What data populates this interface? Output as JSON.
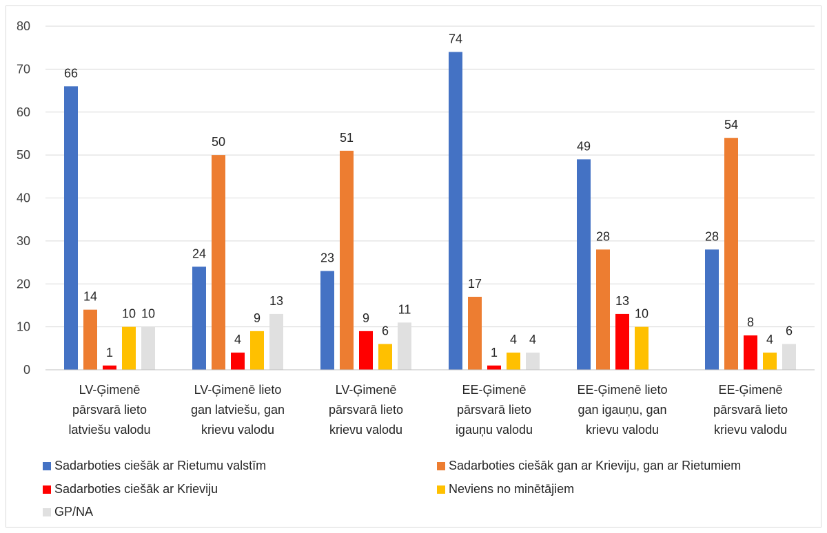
{
  "chart_data": {
    "type": "bar",
    "categories": [
      [
        "LV-Ģimenē",
        "pārsvarā lieto",
        "latviešu valodu"
      ],
      [
        "LV-Ģimenē lieto",
        "gan latviešu, gan",
        "krievu valodu"
      ],
      [
        "LV-Ģimenē",
        "pārsvarā lieto",
        "krievu valodu"
      ],
      [
        "EE-Ģimenē",
        "pārsvarā lieto",
        "igauņu valodu"
      ],
      [
        "EE-Ģimenē lieto",
        "gan igauņu, gan",
        "krievu valodu"
      ],
      [
        "EE-Ģimenē",
        "pārsvarā lieto",
        "krievu valodu"
      ]
    ],
    "series": [
      {
        "name": "Sadarboties ciešāk ar Rietumu valstīm",
        "color": "#4472C4",
        "values": [
          66,
          24,
          23,
          74,
          49,
          28
        ]
      },
      {
        "name": "Sadarboties ciešāk gan ar Krieviju, gan ar Rietumiem",
        "color": "#ED7D31",
        "values": [
          14,
          50,
          51,
          17,
          28,
          54
        ]
      },
      {
        "name": "Sadarboties ciešāk ar Krieviju",
        "color": "#FF0000",
        "values": [
          1,
          4,
          9,
          1,
          13,
          8
        ]
      },
      {
        "name": "Neviens no minētājiem",
        "color": "#FFC000",
        "values": [
          10,
          9,
          6,
          4,
          10,
          4
        ]
      },
      {
        "name": "GP/NA",
        "color": "#E0E0E0",
        "values": [
          10,
          13,
          11,
          4,
          null,
          6
        ]
      }
    ],
    "ylim": [
      0,
      80
    ],
    "yticks": [
      0,
      10,
      20,
      30,
      40,
      50,
      60,
      70,
      80
    ],
    "grid": true,
    "legend_position": "bottom"
  }
}
